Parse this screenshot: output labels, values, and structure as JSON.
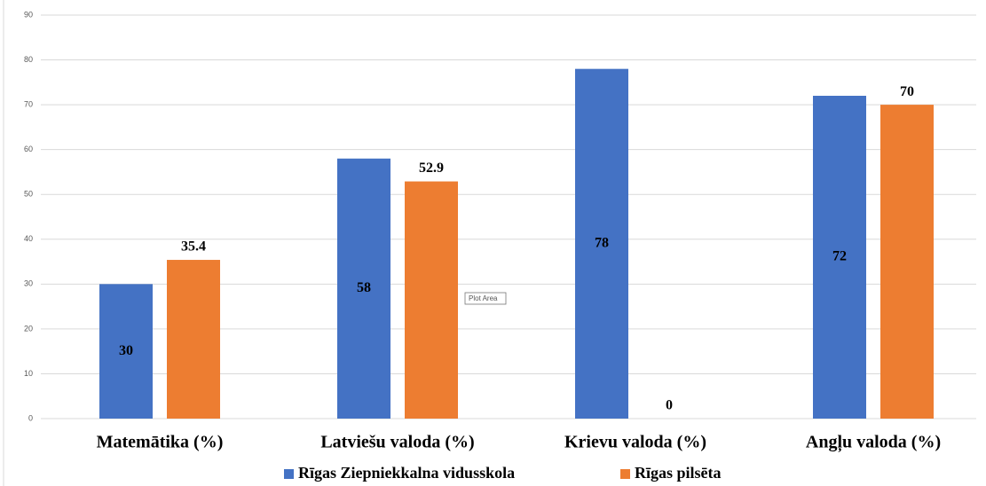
{
  "chart_data": {
    "type": "bar",
    "categories": [
      "Matemātika (%)",
      "Latviešu valoda (%)",
      "Krievu valoda (%)",
      "Angļu valoda (%)"
    ],
    "series": [
      {
        "name": "Rīgas Ziepniekkalna vidusskola",
        "color": "#4472c4",
        "values": [
          30,
          58,
          78,
          72
        ]
      },
      {
        "name": "Rīgas pilsēta",
        "color": "#ed7d31",
        "values": [
          35.4,
          52.9,
          0,
          70
        ]
      }
    ],
    "ylim": [
      0,
      90
    ],
    "yticks": [
      0,
      10,
      20,
      30,
      40,
      50,
      60,
      70,
      80,
      90
    ],
    "grid": true,
    "legend": "bottom",
    "tooltip": "Plot Area"
  }
}
